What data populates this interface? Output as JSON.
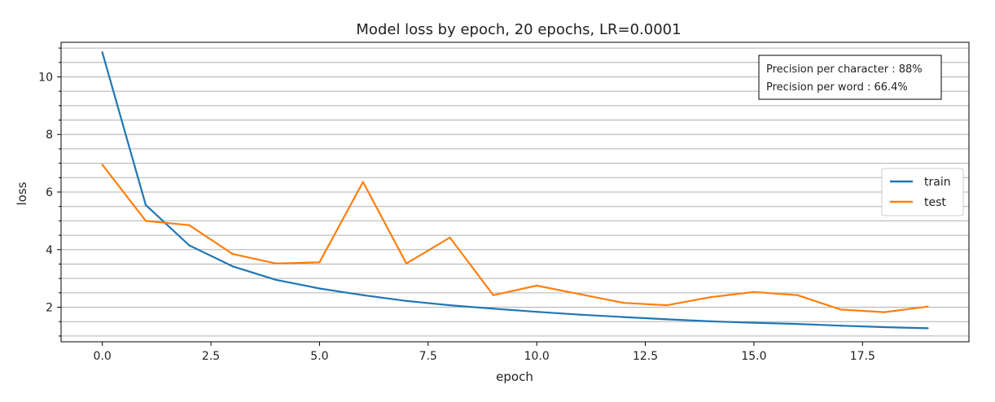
{
  "chart_data": {
    "type": "line",
    "title": "Model loss by epoch, 20 epochs, LR=0.0001",
    "xlabel": "epoch",
    "ylabel": "loss",
    "xlim": [
      -0.95,
      19.95
    ],
    "ylim": [
      0.8,
      11.2
    ],
    "x_ticks": [
      0.0,
      2.5,
      5.0,
      7.5,
      10.0,
      12.5,
      15.0,
      17.5
    ],
    "x_tick_labels": [
      "0.0",
      "2.5",
      "5.0",
      "7.5",
      "10.0",
      "12.5",
      "15.0",
      "17.5"
    ],
    "y_ticks": [
      2,
      4,
      6,
      8,
      10
    ],
    "y_tick_labels": [
      "2",
      "4",
      "6",
      "8",
      "10"
    ],
    "y_minor_gridlines": [
      1.0,
      1.5,
      2.0,
      2.5,
      3.0,
      3.5,
      4.0,
      4.5,
      5.0,
      5.5,
      6.0,
      6.5,
      7.0,
      7.5,
      8.0,
      8.5,
      9.0,
      9.5,
      10.0,
      10.5,
      11.0
    ],
    "grid": "horizontal",
    "x": [
      0,
      1,
      2,
      3,
      4,
      5,
      6,
      7,
      8,
      9,
      10,
      11,
      12,
      13,
      14,
      15,
      16,
      17,
      18,
      19
    ],
    "series": [
      {
        "name": "train",
        "color": "#1f77b4",
        "values": [
          10.85,
          5.55,
          4.15,
          3.42,
          2.95,
          2.65,
          2.42,
          2.22,
          2.07,
          1.95,
          1.84,
          1.74,
          1.66,
          1.58,
          1.51,
          1.46,
          1.42,
          1.36,
          1.31,
          1.27
        ]
      },
      {
        "name": "test",
        "color": "#ff7f0e",
        "values": [
          6.95,
          5.0,
          4.85,
          3.85,
          3.52,
          3.56,
          6.35,
          3.52,
          4.42,
          2.42,
          2.75,
          2.45,
          2.15,
          2.07,
          2.35,
          2.53,
          2.42,
          1.92,
          1.83,
          2.02
        ]
      }
    ],
    "legend": {
      "placement": "center-right"
    },
    "annotation": {
      "placement": "top-right",
      "lines": [
        "Precision per character : 88%",
        "Precision per word : 66.4%"
      ]
    }
  }
}
